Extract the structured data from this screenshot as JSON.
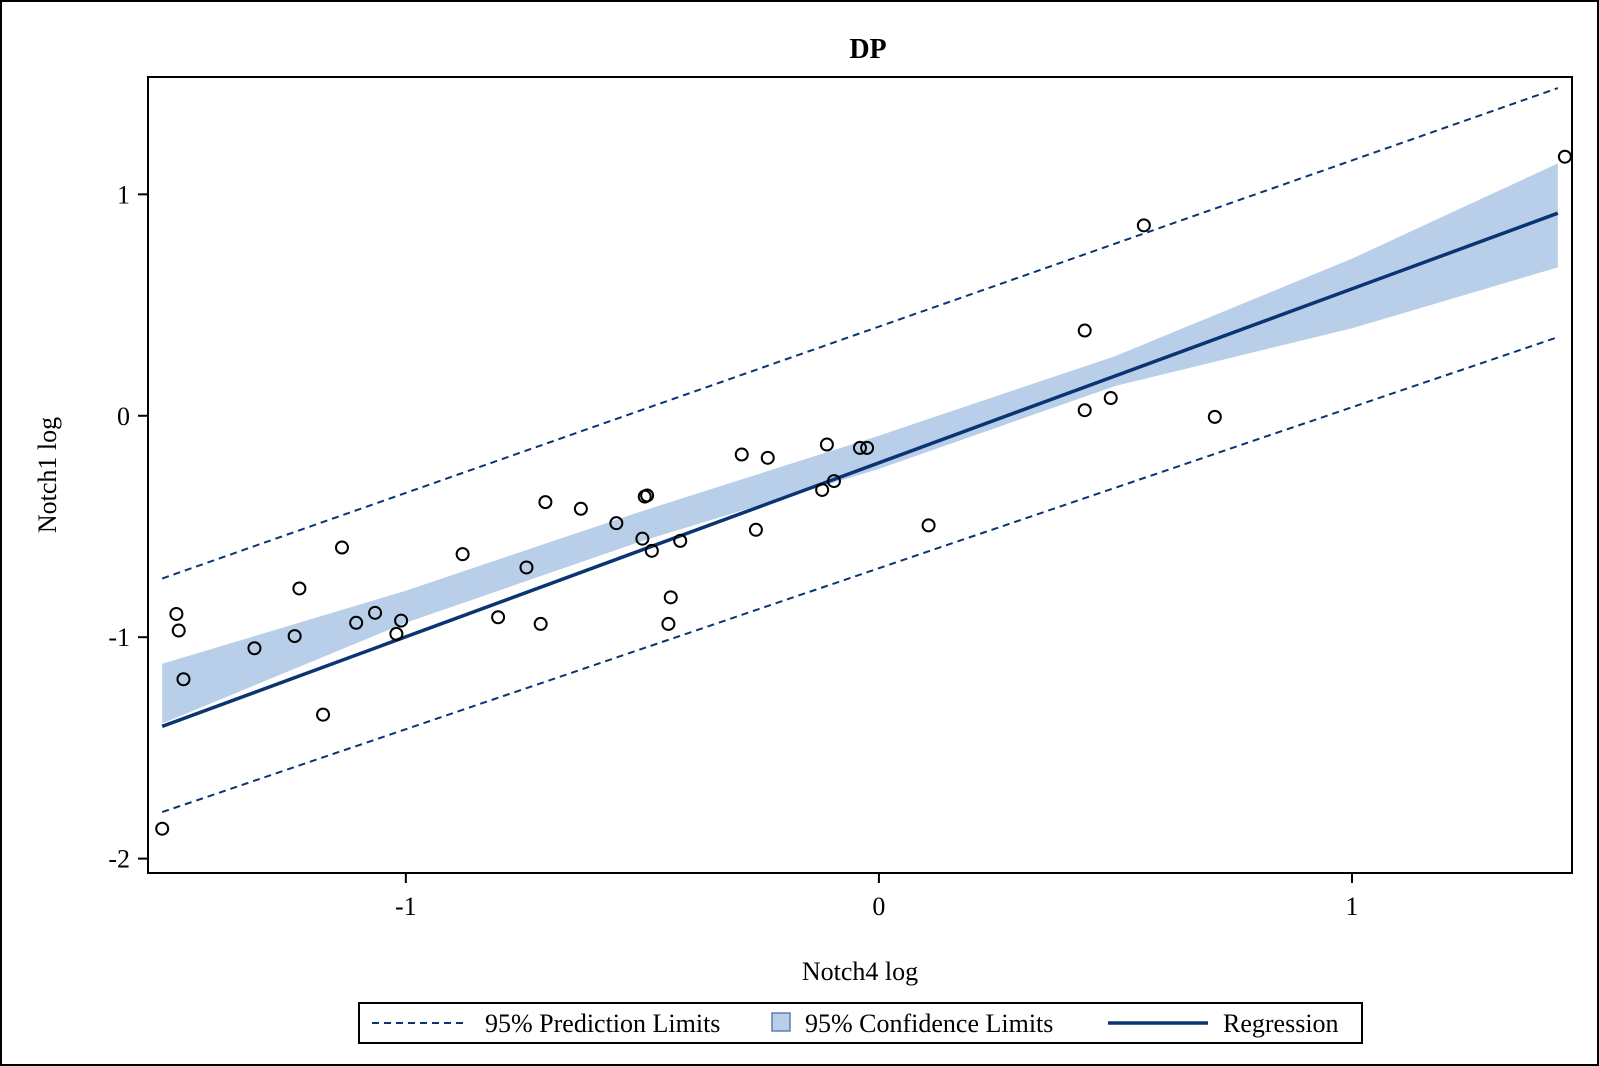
{
  "chart_data": {
    "type": "scatter",
    "title": "DP",
    "xlabel": "Notch4 log",
    "ylabel": "Notch1 log",
    "xlim": [
      -1.545,
      1.465
    ],
    "ylim": [
      -2.065,
      1.53
    ],
    "x_ticks": [
      -1,
      0,
      1
    ],
    "x_tick_labels": [
      "-1",
      "0",
      "1"
    ],
    "y_ticks": [
      -2,
      -1,
      0,
      1
    ],
    "y_tick_labels": [
      "-2",
      "-1",
      "0",
      "1"
    ],
    "grid": false,
    "legend_position": "bottom",
    "regression": {
      "slope": 0.7857,
      "intercept": -0.2125,
      "x_range": [
        -1.515,
        1.435
      ]
    },
    "confidence_band": {
      "x": [
        -1.515,
        -1.0,
        -0.5,
        0.0,
        0.5,
        1.0,
        1.435
      ],
      "lower": [
        -1.39,
        -0.935,
        -0.565,
        -0.24,
        0.135,
        0.395,
        0.67
      ],
      "upper": [
        -1.12,
        -0.79,
        -0.43,
        -0.09,
        0.27,
        0.71,
        1.14
      ]
    },
    "prediction_band": {
      "x": [
        -1.515,
        1.435
      ],
      "lower": [
        -1.79,
        0.355
      ],
      "upper": [
        -0.735,
        1.48
      ]
    },
    "series": [
      {
        "name": "Observed",
        "points": [
          [
            -1.515,
            -1.865
          ],
          [
            -1.485,
            -0.895
          ],
          [
            -1.48,
            -0.97
          ],
          [
            -1.47,
            -1.19
          ],
          [
            -1.32,
            -1.05
          ],
          [
            -1.235,
            -0.995
          ],
          [
            -1.225,
            -0.78
          ],
          [
            -1.175,
            -1.35
          ],
          [
            -1.135,
            -0.595
          ],
          [
            -1.105,
            -0.935
          ],
          [
            -1.065,
            -0.89
          ],
          [
            -1.02,
            -0.985
          ],
          [
            -1.01,
            -0.925
          ],
          [
            -0.88,
            -0.625
          ],
          [
            -0.805,
            -0.91
          ],
          [
            -0.745,
            -0.685
          ],
          [
            -0.715,
            -0.94
          ],
          [
            -0.705,
            -0.39
          ],
          [
            -0.63,
            -0.42
          ],
          [
            -0.555,
            -0.485
          ],
          [
            -0.5,
            -0.555
          ],
          [
            -0.495,
            -0.365
          ],
          [
            -0.49,
            -0.36
          ],
          [
            -0.48,
            -0.61
          ],
          [
            -0.445,
            -0.94
          ],
          [
            -0.44,
            -0.82
          ],
          [
            -0.42,
            -0.565
          ],
          [
            -0.29,
            -0.175
          ],
          [
            -0.26,
            -0.515
          ],
          [
            -0.235,
            -0.19
          ],
          [
            -0.12,
            -0.335
          ],
          [
            -0.11,
            -0.13
          ],
          [
            -0.095,
            -0.295
          ],
          [
            -0.04,
            -0.145
          ],
          [
            -0.025,
            -0.145
          ],
          [
            0.105,
            -0.495
          ],
          [
            0.435,
            0.385
          ],
          [
            0.435,
            0.025
          ],
          [
            0.49,
            0.08
          ],
          [
            0.56,
            0.86
          ],
          [
            0.71,
            -0.005
          ],
          [
            1.45,
            1.17
          ]
        ]
      }
    ],
    "legend": [
      {
        "label": "95% Prediction Limits",
        "style": "dashed-line"
      },
      {
        "label": "95% Confidence Limits",
        "style": "filled-square"
      },
      {
        "label": "Regression",
        "style": "solid-line"
      }
    ],
    "colors": {
      "line": "#0b3473",
      "band": "#b9cfe9",
      "band_edge": "#5a7fb5",
      "marker": "#000000"
    }
  }
}
